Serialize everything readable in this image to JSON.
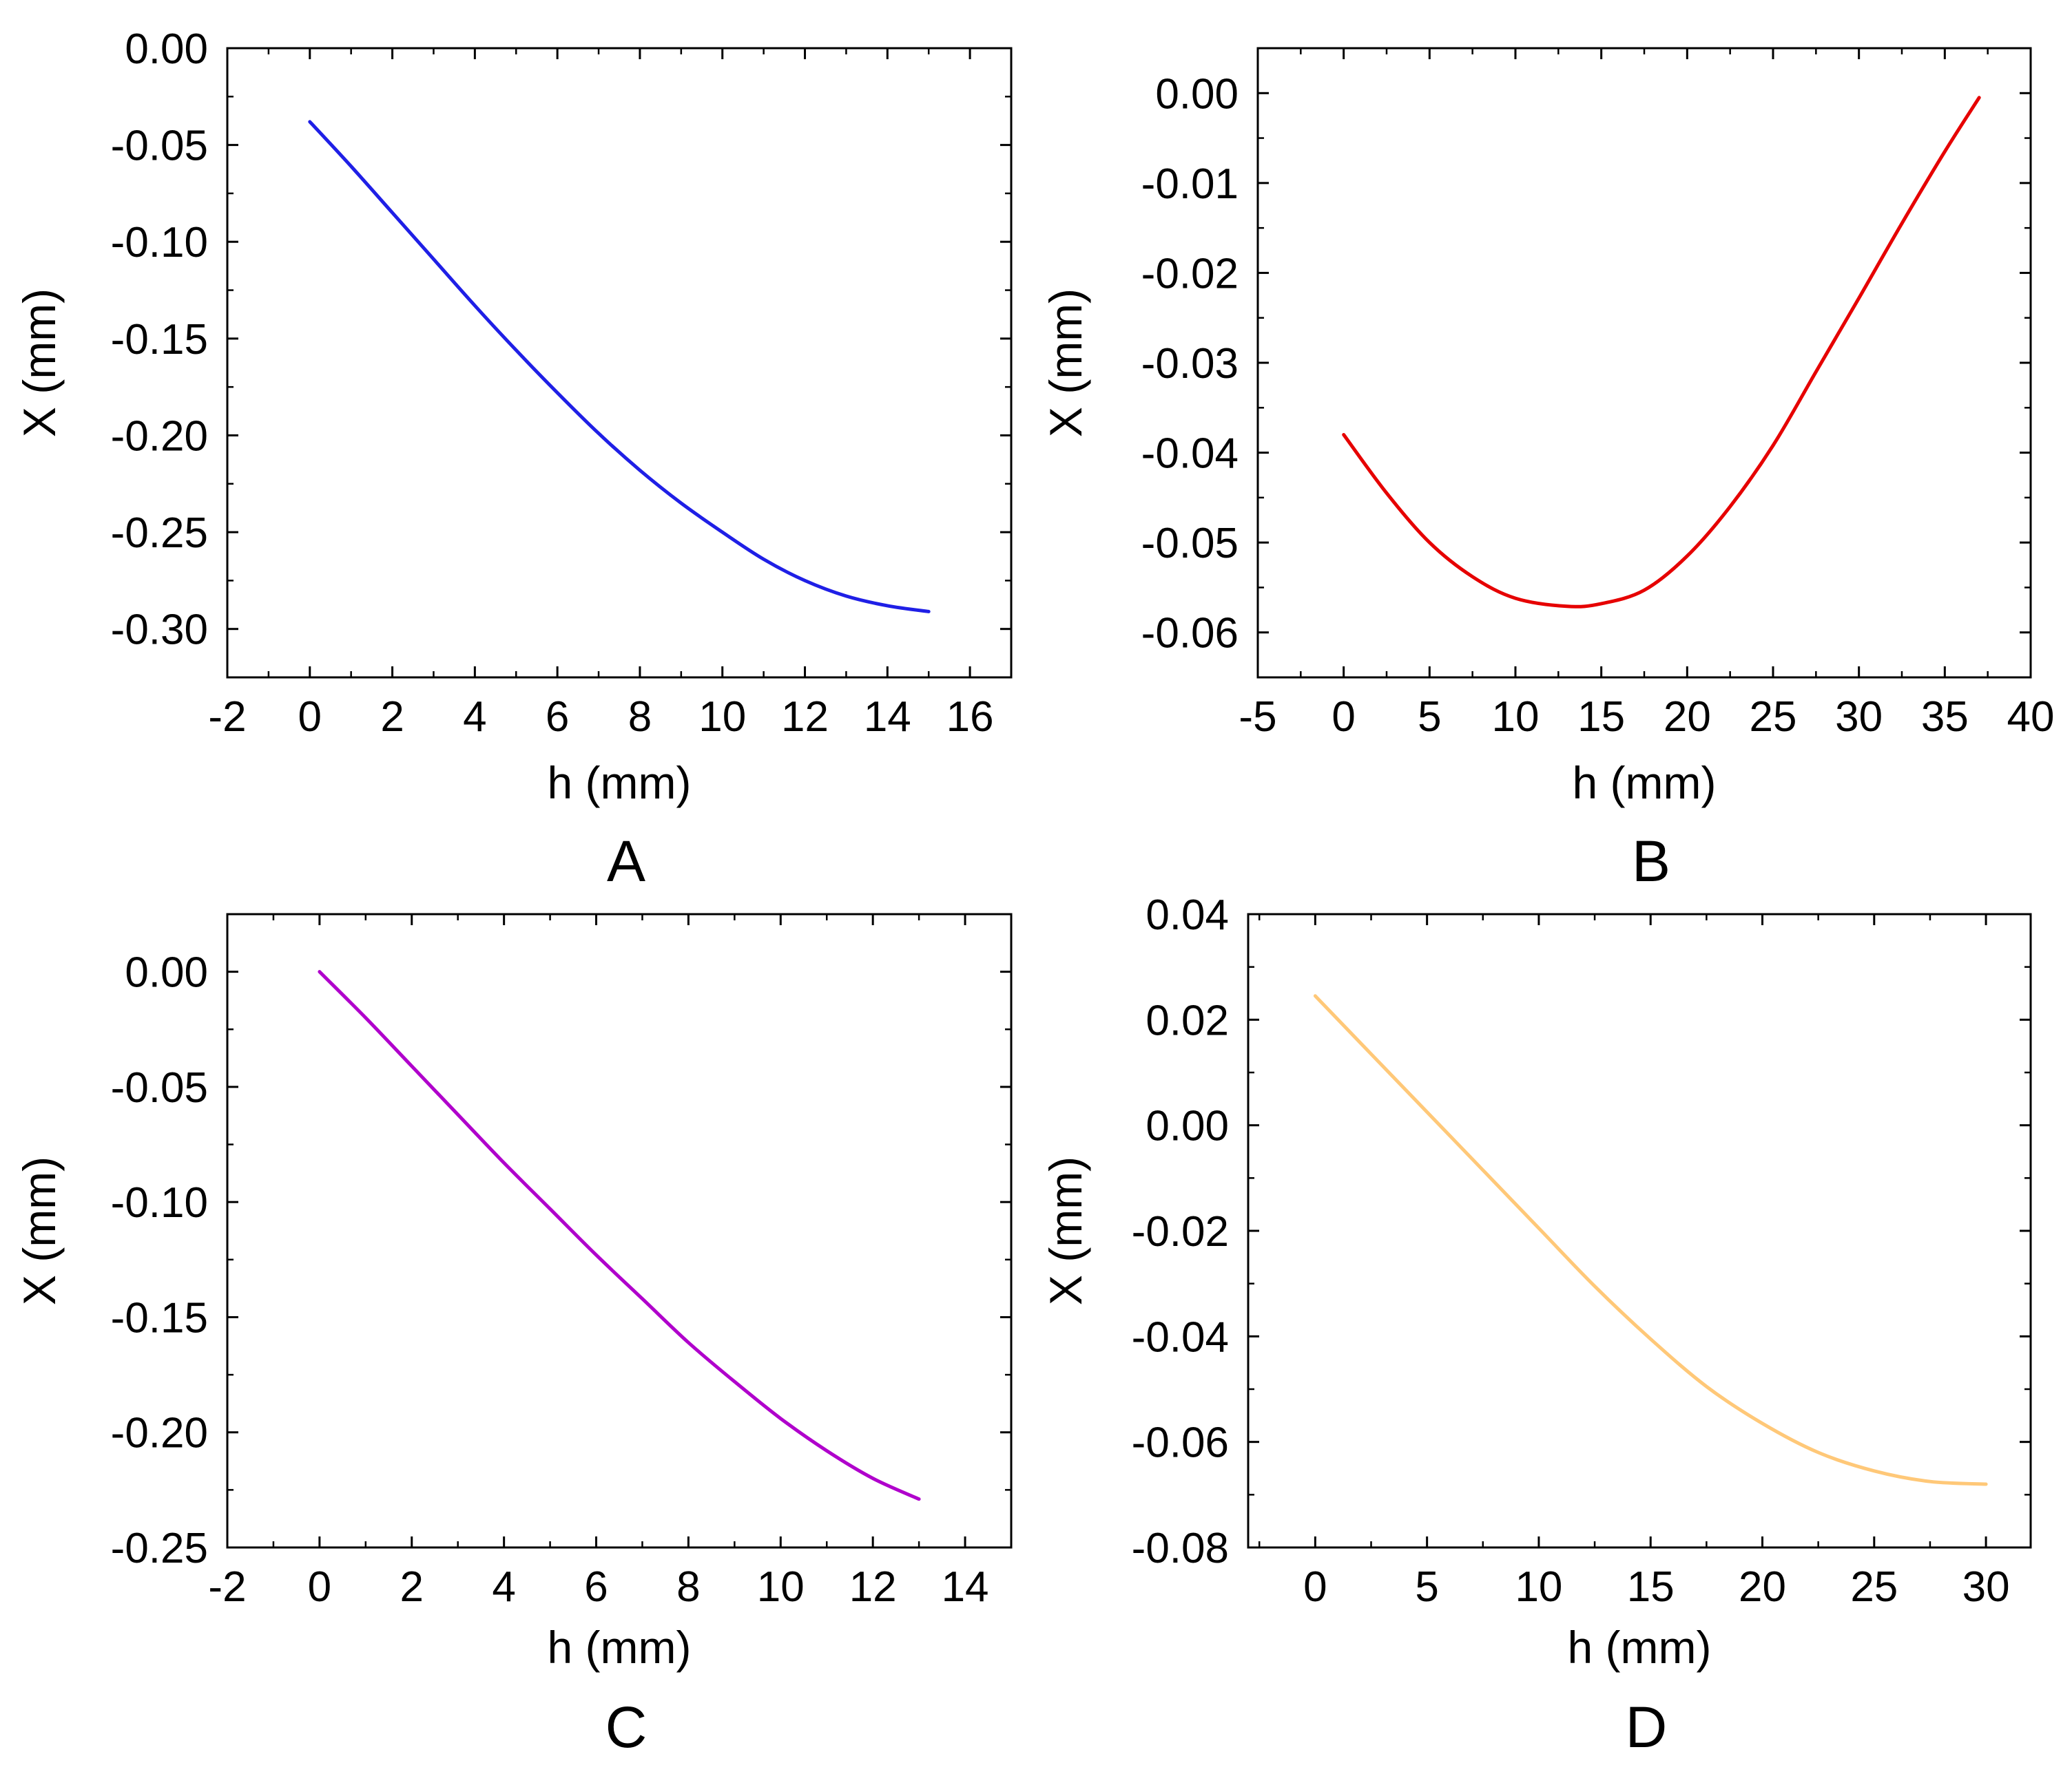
{
  "chart_data": [
    {
      "type": "line",
      "panel_label": "A",
      "xlabel": "h (mm)",
      "ylabel": "X (mm)",
      "xlim": [
        -2,
        17
      ],
      "ylim": [
        -0.325,
        0.0
      ],
      "xticks": [
        -2,
        0,
        2,
        4,
        6,
        8,
        10,
        12,
        14,
        16
      ],
      "xtick_labels": [
        "-2",
        "0",
        "2",
        "4",
        "6",
        "8",
        "10",
        "12",
        "14",
        "16"
      ],
      "yticks": [
        0.0,
        -0.05,
        -0.1,
        -0.15,
        -0.2,
        -0.25,
        -0.3
      ],
      "ytick_labels": [
        "0.00",
        "-0.05",
        "-0.10",
        "-0.15",
        "-0.20",
        "-0.25",
        "-0.30"
      ],
      "series": [
        {
          "name": "A",
          "color": "#1f1fe6",
          "x": [
            0,
            1,
            2,
            3,
            4,
            5,
            6,
            7,
            8,
            9,
            10,
            11,
            12,
            13,
            14,
            15
          ],
          "y": [
            -0.038,
            -0.061,
            -0.085,
            -0.109,
            -0.133,
            -0.156,
            -0.178,
            -0.199,
            -0.218,
            -0.235,
            -0.25,
            -0.264,
            -0.275,
            -0.283,
            -0.288,
            -0.291
          ]
        }
      ]
    },
    {
      "type": "line",
      "panel_label": "B",
      "xlabel": "h (mm)",
      "ylabel": "X (mm)",
      "xlim": [
        -5,
        40
      ],
      "ylim": [
        -0.065,
        0.005
      ],
      "xticks": [
        -5,
        0,
        5,
        10,
        15,
        20,
        25,
        30,
        35,
        40
      ],
      "xtick_labels": [
        "-5",
        "0",
        "5",
        "10",
        "15",
        "20",
        "25",
        "30",
        "35",
        "40"
      ],
      "yticks": [
        0.0,
        -0.01,
        -0.02,
        -0.03,
        -0.04,
        -0.05,
        -0.06
      ],
      "ytick_labels": [
        "0.00",
        "-0.01",
        "-0.02",
        "-0.03",
        "-0.04",
        "-0.05",
        "-0.06"
      ],
      "series": [
        {
          "name": "B",
          "color": "#e60000",
          "x": [
            0,
            2.5,
            5,
            7.5,
            10,
            13,
            15,
            17.5,
            20,
            22.5,
            25,
            27.5,
            30,
            32.5,
            35,
            37
          ],
          "y": [
            -0.038,
            -0.0445,
            -0.05,
            -0.0538,
            -0.0562,
            -0.0571,
            -0.0568,
            -0.0553,
            -0.0515,
            -0.046,
            -0.0392,
            -0.031,
            -0.0228,
            -0.0145,
            -0.0065,
            -0.0005
          ]
        }
      ]
    },
    {
      "type": "line",
      "panel_label": "C",
      "xlabel": "h (mm)",
      "ylabel": "X (mm)",
      "xlim": [
        -2,
        15
      ],
      "ylim": [
        -0.25,
        0.025
      ],
      "xticks": [
        -2,
        0,
        2,
        4,
        6,
        8,
        10,
        12,
        14
      ],
      "xtick_labels": [
        "-2",
        "0",
        "2",
        "4",
        "6",
        "8",
        "10",
        "12",
        "14"
      ],
      "yticks": [
        0.0,
        -0.05,
        -0.1,
        -0.15,
        -0.2,
        -0.25
      ],
      "ytick_labels": [
        "0.00",
        "-0.05",
        "-0.10",
        "-0.15",
        "-0.20",
        "-0.25"
      ],
      "series": [
        {
          "name": "C",
          "color": "#b000cc",
          "x": [
            0,
            1,
            2,
            3,
            4,
            5,
            6,
            7,
            8,
            9,
            10,
            11,
            12,
            13
          ],
          "y": [
            0.0,
            -0.02,
            -0.041,
            -0.062,
            -0.083,
            -0.103,
            -0.123,
            -0.142,
            -0.161,
            -0.178,
            -0.194,
            -0.208,
            -0.22,
            -0.229
          ]
        }
      ]
    },
    {
      "type": "line",
      "panel_label": "D",
      "xlabel": "h (mm)",
      "ylabel": "X (mm)",
      "xlim": [
        -3,
        32
      ],
      "ylim": [
        -0.08,
        0.04
      ],
      "xticks": [
        0,
        5,
        10,
        15,
        20,
        25,
        30
      ],
      "xtick_labels": [
        "0",
        "5",
        "10",
        "15",
        "20",
        "25",
        "30"
      ],
      "yticks": [
        0.04,
        0.02,
        0.0,
        -0.02,
        -0.04,
        -0.06,
        -0.08
      ],
      "ytick_labels": [
        "0.04",
        "0.02",
        "0.00",
        "-0.02",
        "-0.04",
        "-0.06",
        "-0.08"
      ],
      "series": [
        {
          "name": "D",
          "color": "#ffc878",
          "x": [
            0,
            2.5,
            5,
            7.5,
            10,
            12.5,
            15,
            17.5,
            20,
            22.5,
            25,
            27.5,
            30
          ],
          "y": [
            0.0245,
            0.0135,
            0.0025,
            -0.0085,
            -0.0195,
            -0.0305,
            -0.0405,
            -0.0495,
            -0.0565,
            -0.062,
            -0.0655,
            -0.0675,
            -0.068
          ]
        }
      ]
    }
  ]
}
